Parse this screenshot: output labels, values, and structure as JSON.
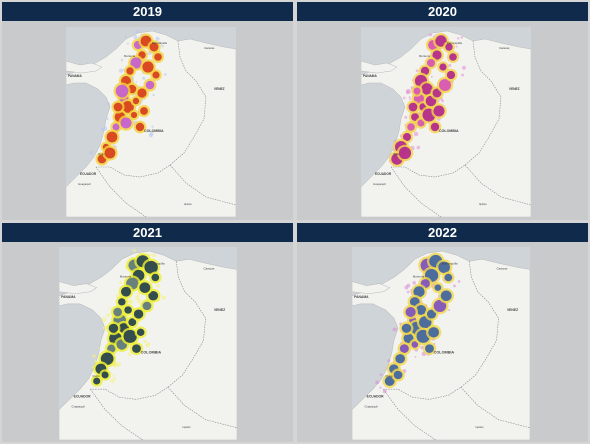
{
  "panels": [
    {
      "title": "2019",
      "scheme": "a"
    },
    {
      "title": "2020",
      "scheme": "b"
    },
    {
      "title": "2021",
      "scheme": "c"
    },
    {
      "title": "2022",
      "scheme": "d"
    }
  ],
  "map_labels": {
    "panama": "PANAMA",
    "colombia": "COLOMBIA",
    "ecuador": "ECUADOR",
    "venezuela": "VENEZ",
    "barranquilla": "Barranquilla",
    "monteria": "Montería",
    "caracas": "Caracas",
    "quito": "Quito",
    "guayaquil": "Guayaquil",
    "iquitos": "Iquitos"
  },
  "colors": {
    "header_bg": "#0f2a4a",
    "land": "#f2f2ef",
    "sea": "#cfd4d8",
    "hotspot_2019": "#c83a1e",
    "hotspot_2020": "#b2208f",
    "hotspot_2021": "#1f3b4d",
    "hotspot_2022": "#3a5fa0"
  }
}
